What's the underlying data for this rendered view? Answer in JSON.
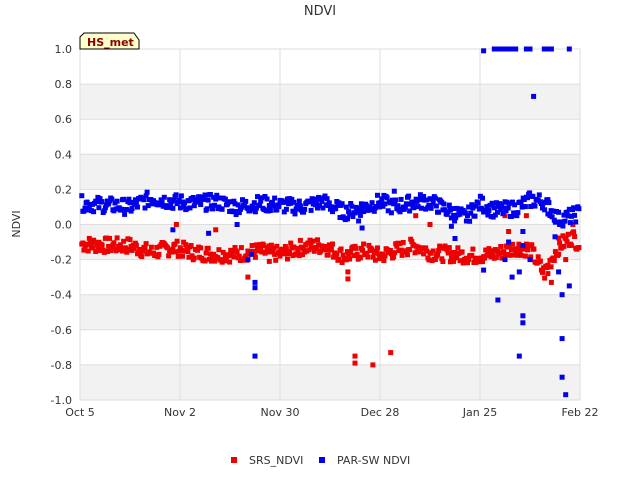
{
  "chart_data": {
    "type": "scatter",
    "title": "NDVI",
    "ylabel": "NDVI",
    "xlabel": "",
    "badge": "HS_met",
    "ylim": [
      -1.0,
      1.0
    ],
    "yticks": [
      1.0,
      0.8,
      0.6,
      0.4,
      0.2,
      0.0,
      -0.2,
      -0.4,
      -0.6,
      -0.8,
      -1.0
    ],
    "ytick_labels": [
      "1.0",
      "0.8",
      "0.6",
      "0.4",
      "0.2",
      "0.0",
      "-0.2",
      "-0.4",
      "-0.6",
      "-0.8",
      "-1.0"
    ],
    "xlim_days": [
      0,
      140
    ],
    "xticks": [
      {
        "day": 0,
        "label": "Oct 5"
      },
      {
        "day": 28,
        "label": "Nov 2"
      },
      {
        "day": 56,
        "label": "Nov 30"
      },
      {
        "day": 84,
        "label": "Dec 28"
      },
      {
        "day": 112,
        "label": "Jan 25"
      },
      {
        "day": 140,
        "label": "Feb 22"
      }
    ],
    "grid": true,
    "legend_position": "bottom-center",
    "series": [
      {
        "name": "SRS_NDVI",
        "color": "#ee0000",
        "baseline": [
          [
            0,
            -0.11
          ],
          [
            8,
            -0.12
          ],
          [
            14,
            -0.12
          ],
          [
            20,
            -0.16
          ],
          [
            26,
            -0.13
          ],
          [
            32,
            -0.16
          ],
          [
            38,
            -0.17
          ],
          [
            44,
            -0.17
          ],
          [
            50,
            -0.15
          ],
          [
            56,
            -0.17
          ],
          [
            62,
            -0.13
          ],
          [
            68,
            -0.12
          ],
          [
            74,
            -0.18
          ],
          [
            80,
            -0.15
          ],
          [
            84,
            -0.18
          ],
          [
            88,
            -0.15
          ],
          [
            94,
            -0.12
          ],
          [
            98,
            -0.16
          ],
          [
            104,
            -0.17
          ],
          [
            110,
            -0.18
          ],
          [
            116,
            -0.17
          ],
          [
            122,
            -0.13
          ],
          [
            126,
            -0.14
          ],
          [
            130,
            -0.28
          ],
          [
            134,
            -0.12
          ],
          [
            138,
            -0.07
          ],
          [
            140,
            -0.12
          ]
        ],
        "outliers": [
          [
            27,
            0.0
          ],
          [
            38,
            -0.03
          ],
          [
            47,
            -0.3
          ],
          [
            53,
            -0.21
          ],
          [
            75,
            -0.31
          ],
          [
            75,
            -0.27
          ],
          [
            94,
            0.05
          ],
          [
            98,
            0.0
          ],
          [
            119,
            0.05
          ],
          [
            120,
            -0.04
          ],
          [
            125,
            0.05
          ],
          [
            132,
            -0.33
          ],
          [
            131,
            -0.28
          ],
          [
            134,
            -0.17
          ],
          [
            136,
            -0.2
          ],
          [
            138,
            0.0
          ],
          [
            77,
            -0.75
          ],
          [
            77,
            -0.79
          ],
          [
            82,
            -0.8
          ],
          [
            87,
            -0.73
          ]
        ]
      },
      {
        "name": "PAR-SW NDVI",
        "color": "#0000ee",
        "baseline": [
          [
            0,
            0.12
          ],
          [
            8,
            0.11
          ],
          [
            14,
            0.1
          ],
          [
            20,
            0.15
          ],
          [
            26,
            0.13
          ],
          [
            32,
            0.12
          ],
          [
            38,
            0.13
          ],
          [
            44,
            0.1
          ],
          [
            50,
            0.12
          ],
          [
            56,
            0.11
          ],
          [
            62,
            0.1
          ],
          [
            68,
            0.13
          ],
          [
            74,
            0.07
          ],
          [
            80,
            0.1
          ],
          [
            84,
            0.13
          ],
          [
            88,
            0.1
          ],
          [
            94,
            0.13
          ],
          [
            98,
            0.13
          ],
          [
            104,
            0.07
          ],
          [
            108,
            0.04
          ],
          [
            112,
            0.12
          ],
          [
            116,
            0.08
          ],
          [
            122,
            0.09
          ],
          [
            126,
            0.14
          ],
          [
            130,
            0.13
          ],
          [
            134,
            0.03
          ],
          [
            138,
            0.05
          ],
          [
            140,
            0.07
          ]
        ],
        "outliers": [
          [
            120,
            -0.1
          ],
          [
            124,
            -0.12
          ],
          [
            124,
            -0.04
          ],
          [
            126,
            -0.2
          ],
          [
            26,
            -0.03
          ],
          [
            36,
            -0.05
          ],
          [
            44,
            0.0
          ],
          [
            47,
            -0.2
          ],
          [
            48,
            -0.17
          ],
          [
            49,
            -0.33
          ],
          [
            49,
            -0.36
          ],
          [
            78,
            0.02
          ],
          [
            79,
            -0.02
          ],
          [
            88,
            0.19
          ],
          [
            104,
            -0.01
          ],
          [
            105,
            -0.08
          ],
          [
            113,
            -0.26
          ],
          [
            117,
            -0.43
          ],
          [
            119,
            -0.2
          ],
          [
            121,
            -0.3
          ],
          [
            123,
            -0.27
          ],
          [
            124,
            -0.52
          ],
          [
            124,
            -0.56
          ],
          [
            123,
            -0.75
          ],
          [
            131,
            0.06
          ],
          [
            133,
            -0.07
          ],
          [
            134,
            -0.27
          ],
          [
            135,
            -0.4
          ],
          [
            135,
            -0.65
          ],
          [
            135,
            -0.87
          ],
          [
            137,
            -0.35
          ],
          [
            136,
            -0.97
          ],
          [
            49,
            -0.75
          ],
          [
            127,
            0.73
          ],
          [
            113,
            0.99
          ],
          [
            116,
            1.0
          ],
          [
            117,
            1.0
          ],
          [
            118,
            1.0
          ],
          [
            119,
            1.0
          ],
          [
            120,
            1.0
          ],
          [
            121,
            1.0
          ],
          [
            122,
            1.0
          ],
          [
            125,
            1.0
          ],
          [
            126,
            1.0
          ],
          [
            130,
            1.0
          ],
          [
            131,
            1.0
          ],
          [
            132,
            1.0
          ],
          [
            137,
            1.0
          ]
        ]
      }
    ]
  }
}
